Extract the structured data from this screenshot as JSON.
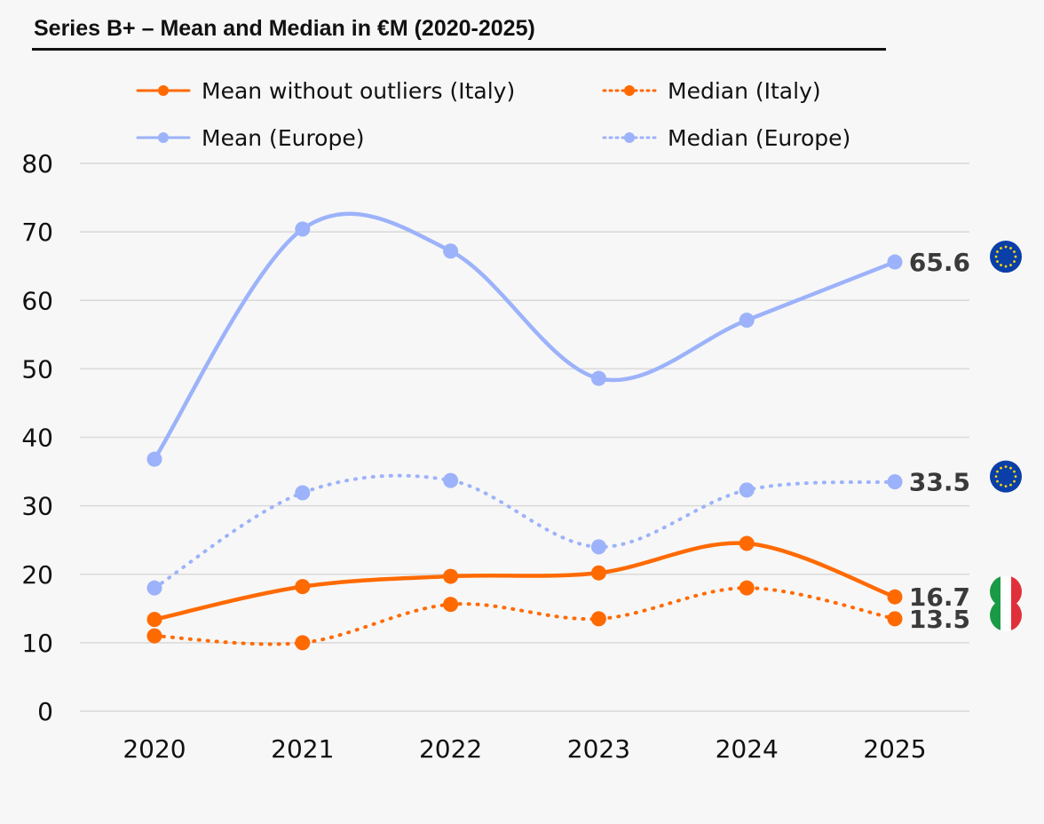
{
  "chart_data": {
    "type": "line",
    "title": "Series B+ – Mean and Median in €M (2020-2025)",
    "xlabel": "",
    "ylabel": "",
    "x": [
      "2020",
      "2021",
      "2022",
      "2023",
      "2024",
      "2025"
    ],
    "ylim": [
      0,
      80
    ],
    "yticks": [
      "0",
      "10",
      "20",
      "30",
      "40",
      "50",
      "60",
      "70",
      "80"
    ],
    "grid": true,
    "legend_position": "top",
    "series": [
      {
        "name": "Mean without outliers (Italy)",
        "color": "#ff6a00",
        "style": "solid",
        "values": [
          13.4,
          18.2,
          19.7,
          20.2,
          24.5,
          16.7
        ],
        "end_label": "16.7",
        "flag": "italy-flag"
      },
      {
        "name": "Median (Italy)",
        "color": "#ff6a00",
        "style": "dotted",
        "values": [
          11.0,
          10.0,
          15.6,
          13.5,
          18.0,
          13.5
        ],
        "end_label": "13.5",
        "flag": "italy-flag"
      },
      {
        "name": "Mean (Europe)",
        "color": "#9cb2fa",
        "style": "solid",
        "values": [
          36.8,
          70.4,
          67.2,
          48.6,
          57.1,
          65.6
        ],
        "end_label": "65.6",
        "flag": "eu-flag"
      },
      {
        "name": "Median (Europe)",
        "color": "#9cb2fa",
        "style": "dotted",
        "values": [
          18.0,
          31.9,
          33.7,
          24.0,
          32.3,
          33.5
        ],
        "end_label": "33.5",
        "flag": "eu-flag"
      }
    ]
  }
}
